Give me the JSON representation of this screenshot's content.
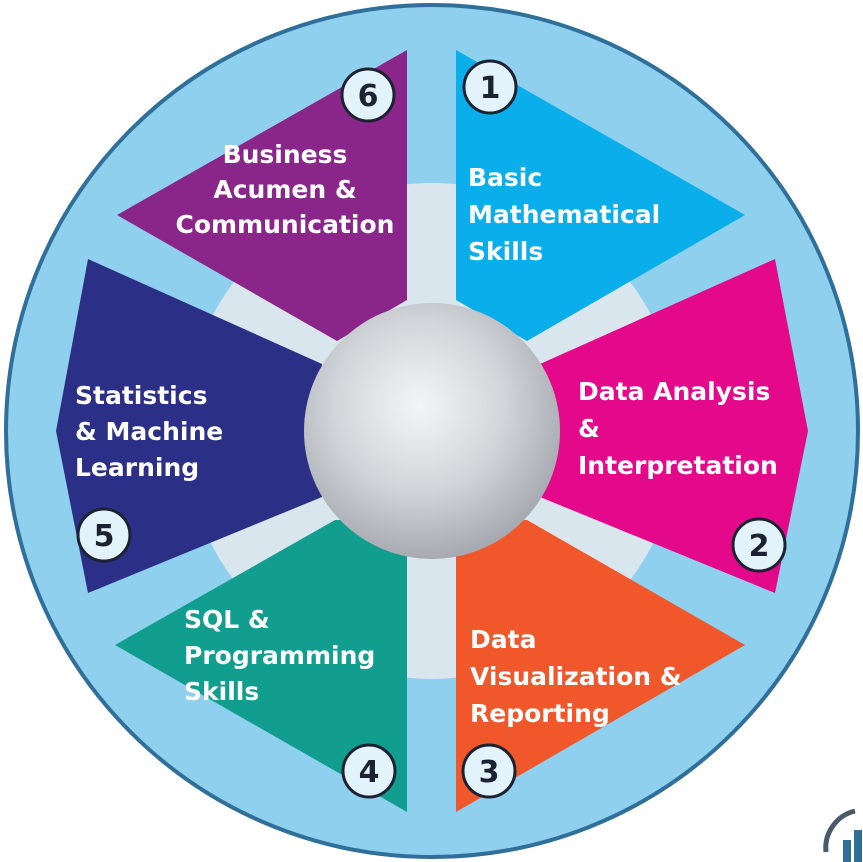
{
  "segments": [
    {
      "number": "1",
      "color": "#0aaeea",
      "lines": [
        "Basic",
        "Mathematical",
        "Skills"
      ]
    },
    {
      "number": "2",
      "color": "#e4098a",
      "lines": [
        "Data Analysis",
        "&",
        "Interpretation"
      ]
    },
    {
      "number": "3",
      "color": "#f0572a",
      "lines": [
        "Data",
        "Visualization &",
        "Reporting"
      ]
    },
    {
      "number": "4",
      "color": "#129e8f",
      "lines": [
        "SQL &",
        "Programming",
        "Skills"
      ]
    },
    {
      "number": "5",
      "color": "#2b2f86",
      "lines": [
        "Statistics",
        "& Machine",
        "Learning"
      ]
    },
    {
      "number": "6",
      "color": "#8a2689",
      "lines": [
        "Business",
        "Acumen &",
        "Communication"
      ]
    }
  ],
  "colors": {
    "ring": "#8fd0ee",
    "ring_edge": "#2f6f9a",
    "hub_band": "#d9e6ee",
    "hub": "#c9cdd2",
    "badge": "#e3f3fb"
  }
}
